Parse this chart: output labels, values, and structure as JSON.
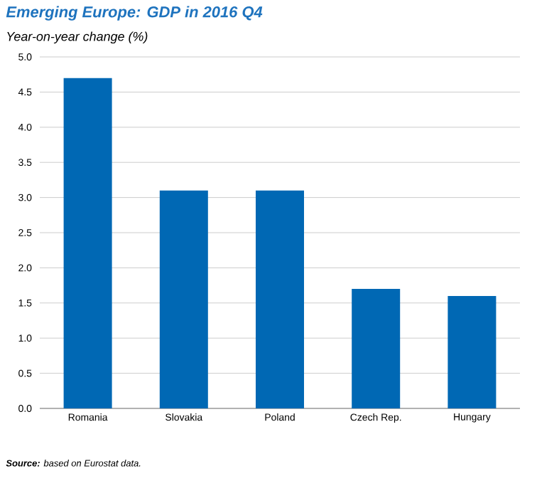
{
  "chart_data": {
    "type": "bar",
    "title": "Emerging Europe: GDP in 2016 Q4",
    "subtitle": "Year-on-year change (%)",
    "categories": [
      "Romania",
      "Slovakia",
      "Poland",
      "Czech Rep.",
      "Hungary"
    ],
    "values": [
      4.7,
      3.1,
      3.1,
      1.7,
      1.6
    ],
    "color": "#0068b4",
    "ylim": [
      0,
      5
    ],
    "yticks": [
      {
        "value": 0,
        "label": "0.0"
      },
      {
        "value": 0.5,
        "label": "0.5"
      },
      {
        "value": 1,
        "label": "1.0"
      },
      {
        "value": 1.5,
        "label": "1.5"
      },
      {
        "value": 2,
        "label": "2.0"
      },
      {
        "value": 2.5,
        "label": "2.5"
      },
      {
        "value": 3,
        "label": "3.0"
      },
      {
        "value": 3.5,
        "label": "3.5"
      },
      {
        "value": 4,
        "label": "4.0"
      },
      {
        "value": 4.5,
        "label": "4.5"
      },
      {
        "value": 5,
        "label": "5.0"
      }
    ],
    "grid": "y",
    "annotations": [
      "**Source:** based on Eurostat data."
    ]
  }
}
